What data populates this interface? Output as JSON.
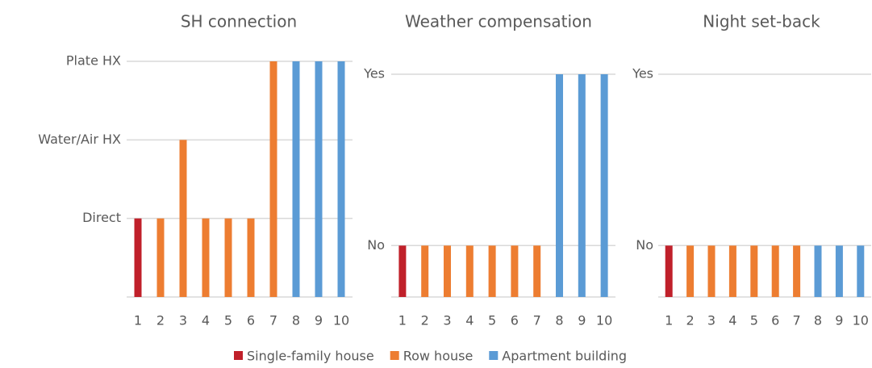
{
  "chart_data": [
    {
      "type": "bar",
      "title": "SH connection",
      "categories": [
        1,
        2,
        3,
        4,
        5,
        6,
        7,
        8,
        9,
        10
      ],
      "series": [
        {
          "name": "Single-family house",
          "color": "#c0202a",
          "values": [
            1,
            null,
            null,
            null,
            null,
            null,
            null,
            null,
            null,
            null
          ]
        },
        {
          "name": "Row house",
          "color": "#ed7d31",
          "values": [
            null,
            1,
            2,
            1,
            1,
            1,
            3,
            null,
            null,
            null
          ]
        },
        {
          "name": "Apartment building",
          "color": "#5b9bd5",
          "values": [
            null,
            null,
            null,
            null,
            null,
            null,
            null,
            3,
            3,
            3
          ]
        }
      ],
      "ylim": [
        0,
        3
      ],
      "yticks": [
        {
          "value": 1,
          "label": "Direct"
        },
        {
          "value": 2,
          "label": "Water/Air HX"
        },
        {
          "value": 3,
          "label": "Plate HX"
        }
      ],
      "grid": true
    },
    {
      "type": "bar",
      "title": "Weather compensation",
      "categories": [
        1,
        2,
        3,
        4,
        5,
        6,
        7,
        8,
        9,
        10
      ],
      "series": [
        {
          "color": "#c0202a",
          "values": [
            0.3,
            null,
            null,
            null,
            null,
            null,
            null,
            null,
            null,
            null
          ]
        },
        {
          "color": "#ed7d31",
          "values": [
            null,
            0.3,
            0.3,
            0.3,
            0.3,
            0.3,
            0.3,
            null,
            null,
            null
          ]
        },
        {
          "color": "#5b9bd5",
          "values": [
            null,
            null,
            null,
            null,
            null,
            null,
            null,
            1.3,
            1.3,
            1.3
          ]
        }
      ],
      "ylim": [
        0,
        1.3
      ],
      "yticks": [
        {
          "value": 0.3,
          "label": "No"
        },
        {
          "value": 1.3,
          "label": "Yes"
        }
      ],
      "grid": true
    },
    {
      "type": "bar",
      "title": "Night set-back",
      "categories": [
        1,
        2,
        3,
        4,
        5,
        6,
        7,
        8,
        9,
        10
      ],
      "series": [
        {
          "color": "#c0202a",
          "values": [
            0.3,
            null,
            null,
            null,
            null,
            null,
            null,
            null,
            null,
            null
          ]
        },
        {
          "color": "#ed7d31",
          "values": [
            null,
            0.3,
            0.3,
            0.3,
            0.3,
            0.3,
            0.3,
            null,
            null,
            null
          ]
        },
        {
          "color": "#5b9bd5",
          "values": [
            null,
            null,
            null,
            null,
            null,
            null,
            null,
            0.3,
            0.3,
            0.3
          ]
        }
      ],
      "ylim": [
        0,
        1.3
      ],
      "yticks": [
        {
          "value": 0.3,
          "label": "No"
        },
        {
          "value": 1.3,
          "label": "Yes"
        }
      ],
      "grid": true
    }
  ]
}
